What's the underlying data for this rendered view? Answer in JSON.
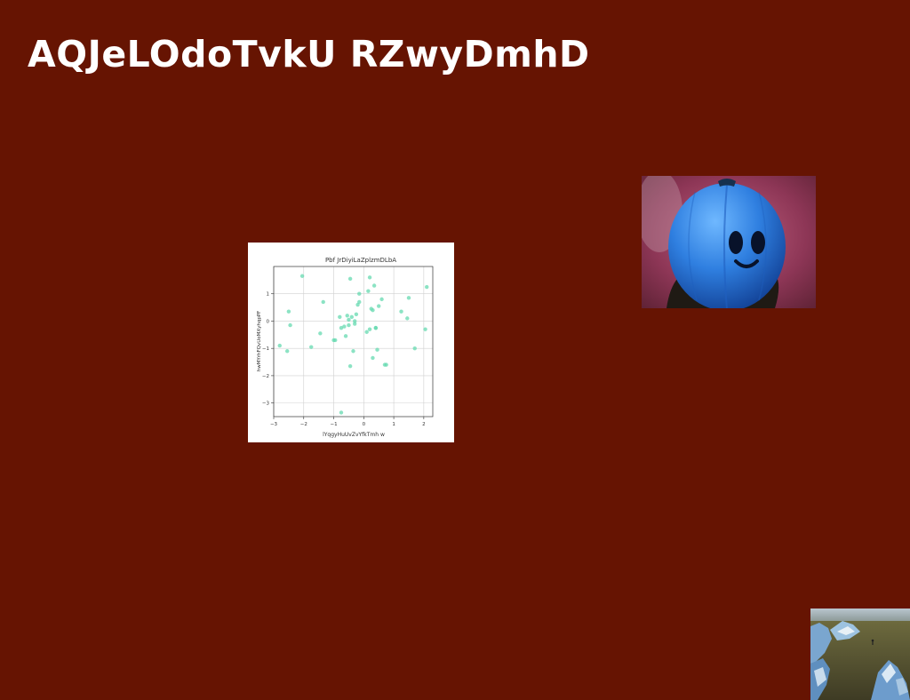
{
  "page": {
    "title": "AQJeLOdoTvkU RZwyDmhD",
    "background_color": "#661402"
  },
  "images": {
    "blue_character": "blue-fruit-character-photo",
    "coast": "rocky-coastline-photo"
  },
  "chart_data": {
    "type": "scatter",
    "title": "Pbf JrDiyiLaZplzmDLbA",
    "xlabel": "lYqgyHuUvZvYfkTmh w",
    "ylabel": "hwMYrhFQvUoMXyhqpPF",
    "xlim": [
      -3,
      2.3
    ],
    "ylim": [
      -3.5,
      2.0
    ],
    "xticks": [
      -3,
      -2,
      -1,
      0,
      1,
      2
    ],
    "yticks": [
      -3,
      -2,
      -1,
      0,
      1
    ],
    "grid": true,
    "color": "#66d9b0",
    "points": [
      [
        -2.05,
        1.65
      ],
      [
        -2.8,
        -0.9
      ],
      [
        -2.55,
        -1.1
      ],
      [
        -2.5,
        0.35
      ],
      [
        -2.45,
        -0.15
      ],
      [
        -1.75,
        -0.95
      ],
      [
        -1.45,
        -0.45
      ],
      [
        -1.35,
        0.7
      ],
      [
        -1.0,
        -0.7
      ],
      [
        -0.95,
        -0.7
      ],
      [
        -0.8,
        0.15
      ],
      [
        -0.75,
        -0.25
      ],
      [
        -0.65,
        -0.2
      ],
      [
        -0.6,
        -0.55
      ],
      [
        -0.55,
        0.2
      ],
      [
        -0.5,
        -0.15
      ],
      [
        -0.5,
        0.05
      ],
      [
        -0.45,
        1.55
      ],
      [
        -0.45,
        -1.65
      ],
      [
        -0.4,
        0.15
      ],
      [
        -0.35,
        -1.1
      ],
      [
        -0.3,
        0.0
      ],
      [
        -0.25,
        0.25
      ],
      [
        -0.2,
        0.6
      ],
      [
        -0.15,
        1.0
      ],
      [
        -0.15,
        0.7
      ],
      [
        -0.75,
        -3.35
      ],
      [
        0.1,
        -0.4
      ],
      [
        0.15,
        1.1
      ],
      [
        0.2,
        -0.3
      ],
      [
        0.2,
        1.6
      ],
      [
        0.25,
        0.45
      ],
      [
        0.3,
        0.4
      ],
      [
        0.3,
        -1.35
      ],
      [
        0.35,
        1.3
      ],
      [
        0.4,
        -0.25
      ],
      [
        0.45,
        -1.05
      ],
      [
        0.5,
        0.55
      ],
      [
        0.6,
        0.8
      ],
      [
        0.7,
        -1.6
      ],
      [
        0.75,
        -1.6
      ],
      [
        1.25,
        0.35
      ],
      [
        1.45,
        0.1
      ],
      [
        1.5,
        0.85
      ],
      [
        1.7,
        -1.0
      ],
      [
        2.05,
        -0.3
      ],
      [
        2.1,
        1.25
      ],
      [
        0.4,
        -0.25
      ],
      [
        -0.3,
        -0.1
      ]
    ]
  }
}
